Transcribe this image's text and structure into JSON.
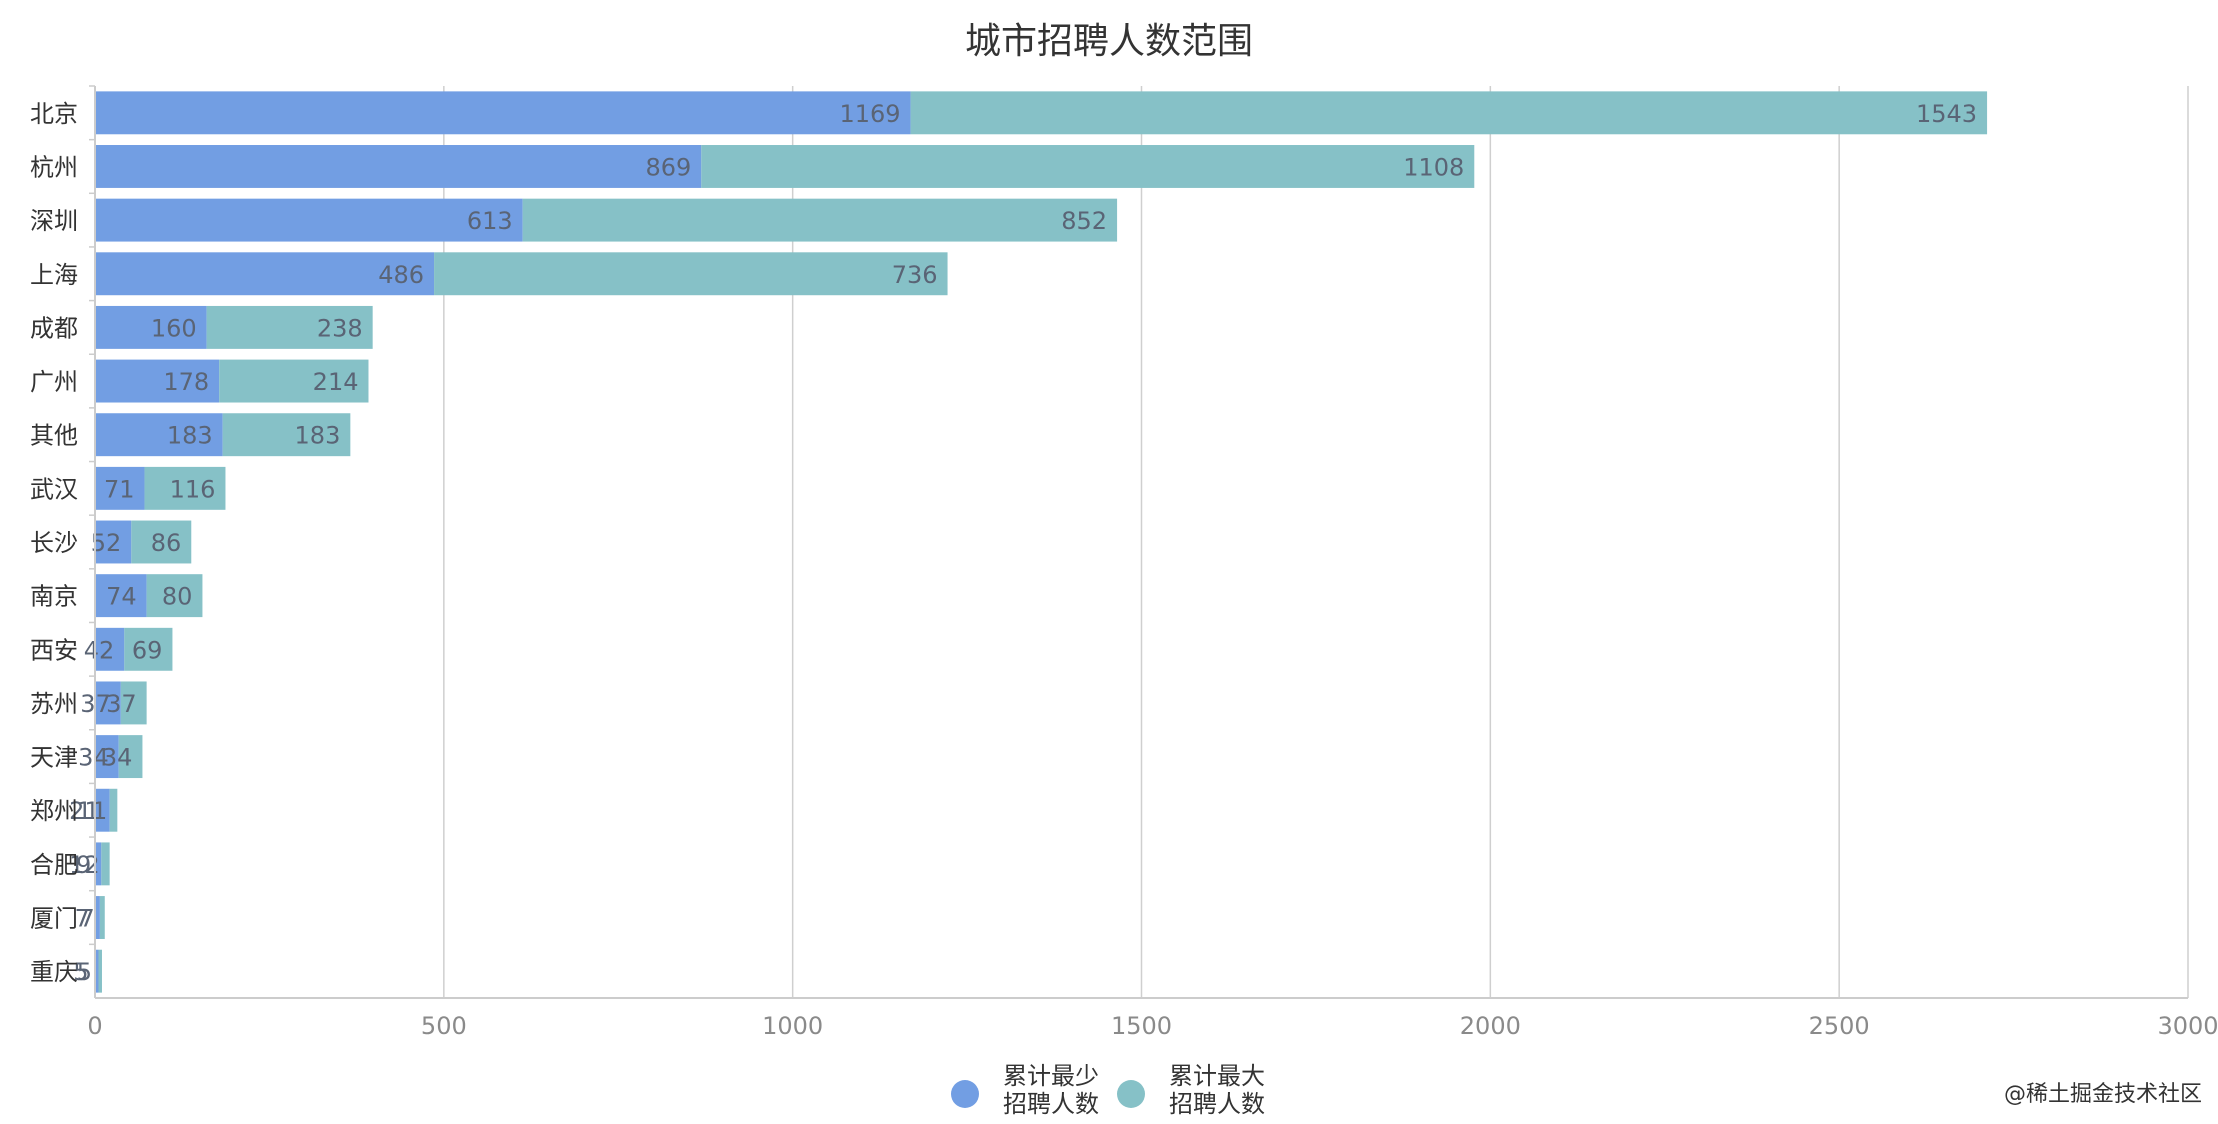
{
  "chart_data": {
    "type": "bar",
    "orientation": "horizontal",
    "stacked": true,
    "title": "城市招聘人数范围",
    "categories": [
      "北京",
      "杭州",
      "深圳",
      "上海",
      "成都",
      "广州",
      "其他",
      "武汉",
      "长沙",
      "南京",
      "西安",
      "苏州",
      "天津",
      "郑州",
      "合肥",
      "厦门",
      "重庆"
    ],
    "series": [
      {
        "name": "累计最少\n招聘人数",
        "color": "#729ee3",
        "values": [
          1169,
          869,
          613,
          486,
          160,
          178,
          183,
          71,
          52,
          74,
          42,
          37,
          34,
          21,
          9,
          7,
          5
        ]
      },
      {
        "name": "累计最大\n招聘人数",
        "color": "#86c1c7",
        "values": [
          1543,
          1108,
          852,
          736,
          238,
          214,
          183,
          116,
          86,
          80,
          69,
          37,
          34,
          11,
          12,
          7,
          5
        ]
      }
    ],
    "xlim": [
      0,
      3000
    ],
    "xticks": [
      0,
      500,
      1000,
      1500,
      2000,
      2500,
      3000
    ],
    "grid": "vertical",
    "legend_position": "bottom-center"
  },
  "watermark": "@稀土掘金技术社区",
  "colors": {
    "axis": "#cccccc",
    "grid": "#cfcfcf"
  }
}
